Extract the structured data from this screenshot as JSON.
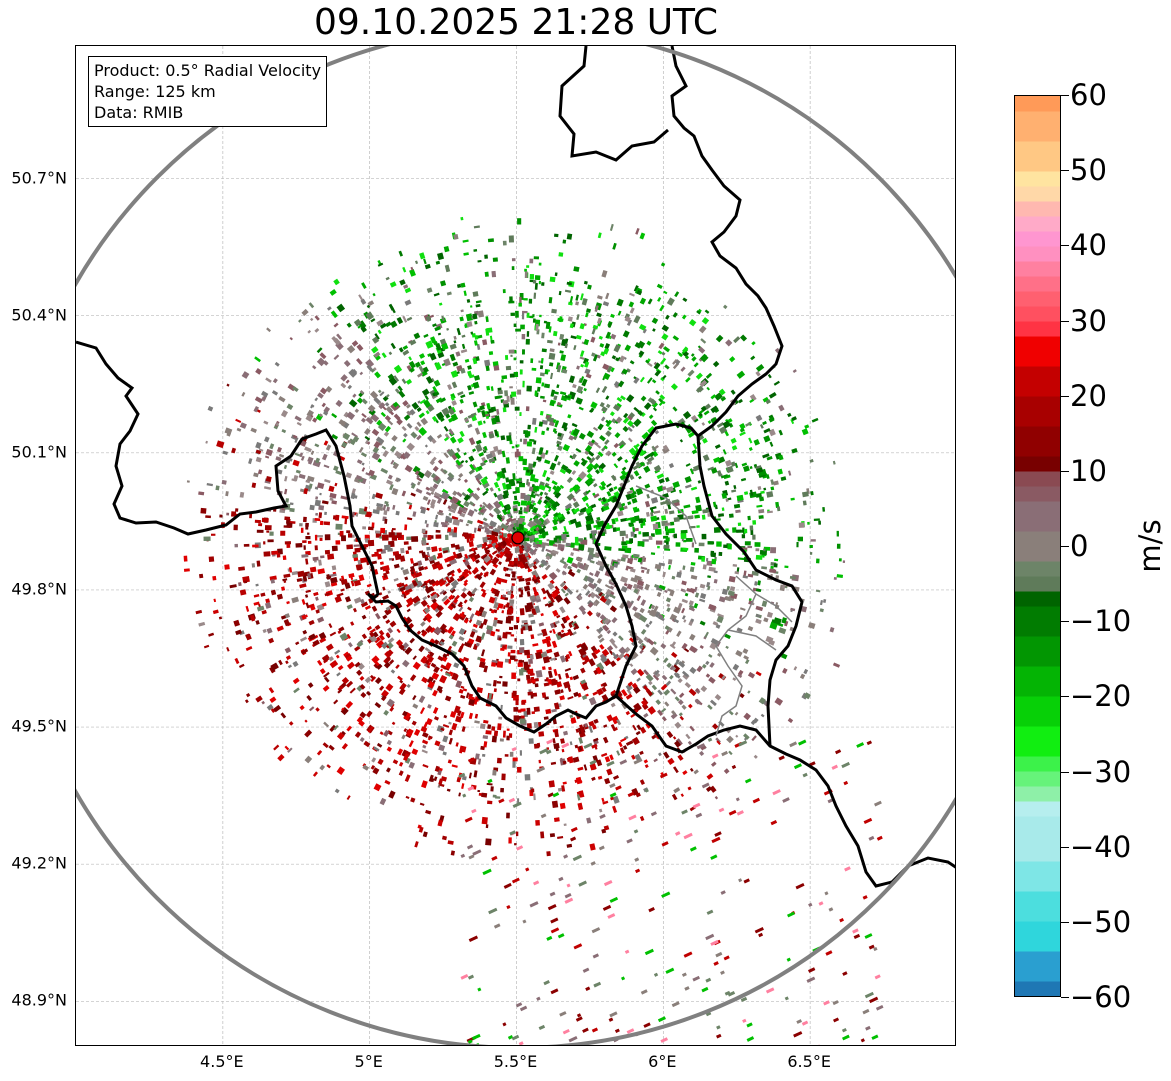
{
  "title": "09.10.2025 21:28 UTC",
  "info_box": {
    "product": "Product: 0.5° Radial Velocity",
    "range": "Range: 125 km",
    "source": "Data: RMIB"
  },
  "map": {
    "lon_range": [
      4.0,
      7.0
    ],
    "lat_range": [
      48.8,
      50.99
    ],
    "lat_ticks": [
      {
        "value": 50.7,
        "label": "50.7°N"
      },
      {
        "value": 50.4,
        "label": "50.4°N"
      },
      {
        "value": 50.1,
        "label": "50.1°N"
      },
      {
        "value": 49.8,
        "label": "49.8°N"
      },
      {
        "value": 49.5,
        "label": "49.5°N"
      },
      {
        "value": 49.2,
        "label": "49.2°N"
      },
      {
        "value": 48.9,
        "label": "48.9°N"
      }
    ],
    "lon_ticks": [
      {
        "value": 4.5,
        "label": "4.5°E"
      },
      {
        "value": 5.0,
        "label": "5°E"
      },
      {
        "value": 5.5,
        "label": "5.5°E"
      },
      {
        "value": 6.0,
        "label": "6°E"
      },
      {
        "value": 6.5,
        "label": "6.5°E"
      }
    ],
    "radar_site": {
      "lon": 5.505,
      "lat": 49.914
    },
    "range_km": 125,
    "colors": {
      "outbound_dark": "#8b0000",
      "outbound": "#cc0000",
      "inbound_dark": "#006400",
      "inbound": "#00a000",
      "near_zero": "#8a7a7a",
      "site_marker": "#e00000",
      "range_ring": "#808080",
      "border": "#000000"
    }
  },
  "colorbar": {
    "unit": "m/s",
    "min": -60,
    "max": 60,
    "ticks": [
      {
        "value": 60,
        "label": "60"
      },
      {
        "value": 50,
        "label": "50"
      },
      {
        "value": 40,
        "label": "40"
      },
      {
        "value": 30,
        "label": "30"
      },
      {
        "value": 20,
        "label": "20"
      },
      {
        "value": 10,
        "label": "10"
      },
      {
        "value": 0,
        "label": "0"
      },
      {
        "value": -10,
        "label": "−10"
      },
      {
        "value": -20,
        "label": "−20"
      },
      {
        "value": -30,
        "label": "−30"
      },
      {
        "value": -40,
        "label": "−40"
      },
      {
        "value": -50,
        "label": "−50"
      },
      {
        "value": -60,
        "label": "−60"
      }
    ],
    "bands": [
      {
        "from": -60,
        "to": -58,
        "color": "#1f77b4"
      },
      {
        "from": -58,
        "to": -54,
        "color": "#2a9fd0"
      },
      {
        "from": -54,
        "to": -50,
        "color": "#2fd6dc"
      },
      {
        "from": -50,
        "to": -46,
        "color": "#4cdede"
      },
      {
        "from": -46,
        "to": -42,
        "color": "#7ee6e6"
      },
      {
        "from": -42,
        "to": -36,
        "color": "#a8eaea"
      },
      {
        "from": -36,
        "to": -34,
        "color": "#b6eeee"
      },
      {
        "from": -34,
        "to": -32,
        "color": "#8ef0a8"
      },
      {
        "from": -32,
        "to": -30,
        "color": "#66f37a"
      },
      {
        "from": -30,
        "to": -28,
        "color": "#3cf24a"
      },
      {
        "from": -28,
        "to": -24,
        "color": "#11ee11"
      },
      {
        "from": -24,
        "to": -20,
        "color": "#07d007"
      },
      {
        "from": -20,
        "to": -16,
        "color": "#04b404"
      },
      {
        "from": -16,
        "to": -12,
        "color": "#029602"
      },
      {
        "from": -12,
        "to": -8,
        "color": "#017c01"
      },
      {
        "from": -8,
        "to": -6,
        "color": "#006400"
      },
      {
        "from": -6,
        "to": -4,
        "color": "#5f7b5a"
      },
      {
        "from": -4,
        "to": -2,
        "color": "#6d8468"
      },
      {
        "from": -2,
        "to": 2,
        "color": "#8a7f7a"
      },
      {
        "from": 2,
        "to": 6,
        "color": "#8a6e76"
      },
      {
        "from": 6,
        "to": 8,
        "color": "#8a5a63"
      },
      {
        "from": 8,
        "to": 10,
        "color": "#8a4a52"
      },
      {
        "from": 10,
        "to": 12,
        "color": "#780000"
      },
      {
        "from": 12,
        "to": 16,
        "color": "#900000"
      },
      {
        "from": 16,
        "to": 20,
        "color": "#a80000"
      },
      {
        "from": 20,
        "to": 24,
        "color": "#c40000"
      },
      {
        "from": 24,
        "to": 28,
        "color": "#f00000"
      },
      {
        "from": 28,
        "to": 30,
        "color": "#ff3344"
      },
      {
        "from": 30,
        "to": 32,
        "color": "#ff5060"
      },
      {
        "from": 32,
        "to": 34,
        "color": "#ff6070"
      },
      {
        "from": 34,
        "to": 36,
        "color": "#ff7088"
      },
      {
        "from": 36,
        "to": 38,
        "color": "#ff80a0"
      },
      {
        "from": 38,
        "to": 40,
        "color": "#ff90c0"
      },
      {
        "from": 40,
        "to": 42,
        "color": "#ff96d0"
      },
      {
        "from": 42,
        "to": 44,
        "color": "#ffaac8"
      },
      {
        "from": 44,
        "to": 46,
        "color": "#ffb8b0"
      },
      {
        "from": 46,
        "to": 48,
        "color": "#ffd8a8"
      },
      {
        "from": 48,
        "to": 50,
        "color": "#ffe4a0"
      },
      {
        "from": 50,
        "to": 54,
        "color": "#ffc884"
      },
      {
        "from": 54,
        "to": 58,
        "color": "#ffb070"
      },
      {
        "from": 58,
        "to": 60,
        "color": "#ff9a58"
      }
    ]
  }
}
